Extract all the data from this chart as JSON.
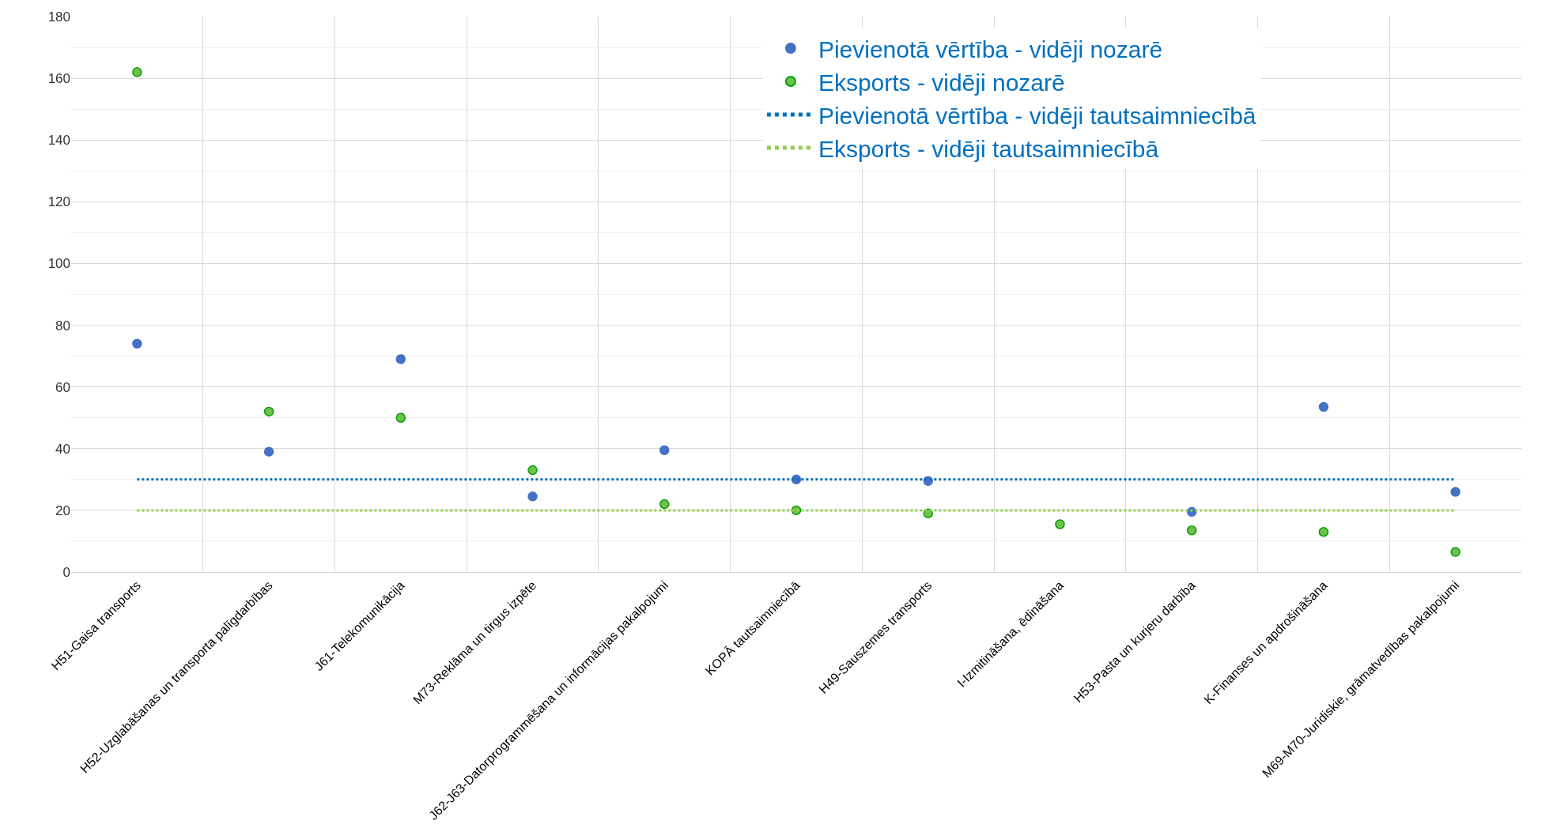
{
  "chart_data": {
    "type": "scatter",
    "categories": [
      "H51-Gaisa transports",
      "H52-Uzglabāšanas un transporta palīgdarbības",
      "J61-Telekomunikācija",
      "M73-Reklāma un tirgus izpēte",
      "J62-J63-Datorprogrammēšana un informācijas pakalpojumi",
      "KOPĀ tautsaimniecībā",
      "H49-Sauszemes transports",
      "I-Izmitināšana, ēdināšana",
      "H53-Pasta un kurjeru darbība",
      "K-Finanses un apdrošināšana",
      "M69-M70-Juridiskie, grāmatvedības pakalpojumi"
    ],
    "series": [
      {
        "name": "Pievienotā vērtība - vidēji nozarē",
        "color": "#4472c4",
        "values": [
          74,
          39,
          69,
          24.5,
          39.5,
          30,
          29.5,
          null,
          19.5,
          53.5,
          26
        ]
      },
      {
        "name": "Eksports - vidēji nozarē",
        "color": "#70c050",
        "values": [
          162,
          52,
          50,
          33,
          22,
          20,
          19,
          15.5,
          13.5,
          13,
          6.5
        ]
      }
    ],
    "ref_lines": [
      {
        "axis": "y",
        "value": 30,
        "label": "Pievienotā vērtība - vidēji tautsaimniecībā",
        "color": "#0070c0",
        "line_style": "dotted"
      },
      {
        "axis": "y",
        "value": 20,
        "label": "Eksports - vidēji tautsaimniecībā",
        "color": "#92d050",
        "line_style": "dotted"
      }
    ],
    "ylim": [
      0,
      180
    ],
    "yticks": [
      0,
      20,
      40,
      60,
      80,
      100,
      120,
      140,
      160,
      180
    ],
    "grid": true,
    "legend": "top right",
    "marker": "circle"
  }
}
